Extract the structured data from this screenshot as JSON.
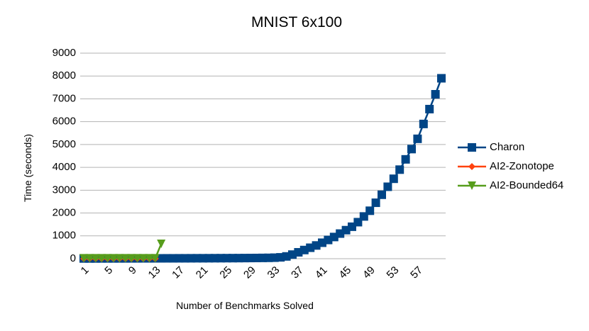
{
  "chart_data": {
    "type": "line",
    "title": "MNIST 6x100",
    "x_label": "Number of Benchmarks Solved",
    "y_label": "Time (seconds)",
    "categories": [
      "1",
      null,
      null,
      null,
      "5",
      null,
      null,
      null,
      "9",
      null,
      null,
      null,
      "13",
      null,
      null,
      null,
      "17",
      null,
      null,
      null,
      "21",
      null,
      null,
      null,
      "25",
      null,
      null,
      null,
      "29",
      null,
      null,
      null,
      "33",
      null,
      null,
      null,
      "37",
      null,
      null,
      null,
      "41",
      null,
      null,
      null,
      "45",
      null,
      null,
      null,
      "49",
      null,
      null,
      null,
      "53",
      null,
      null,
      null,
      "57",
      null,
      null,
      null,
      null
    ],
    "series": [
      {
        "name": "Charon",
        "color": "#004586",
        "marker": "square",
        "values": [
          10,
          10,
          10,
          12,
          12,
          12,
          13,
          13,
          14,
          14,
          15,
          15,
          16,
          16,
          17,
          17,
          18,
          18,
          19,
          20,
          20,
          21,
          22,
          23,
          24,
          25,
          26,
          28,
          30,
          32,
          35,
          38,
          45,
          60,
          100,
          180,
          280,
          380,
          480,
          580,
          700,
          820,
          950,
          1100,
          1250,
          1400,
          1600,
          1850,
          2100,
          2450,
          2800,
          3150,
          3500,
          3900,
          4350,
          4800,
          5250,
          5900,
          6550,
          7200,
          7900
        ]
      },
      {
        "name": "AI2-Zonotope",
        "color": "#ff420e",
        "marker": "diamond",
        "values": [
          5,
          5,
          5,
          5,
          5,
          5,
          5,
          5,
          5,
          5,
          5,
          5,
          5,
          null,
          null,
          null,
          null,
          null,
          null,
          null,
          null,
          null,
          null,
          null,
          null,
          null,
          null,
          null,
          null,
          null,
          null,
          null,
          null,
          null,
          null,
          null,
          null,
          null,
          null,
          null,
          null,
          null,
          null,
          null,
          null,
          null,
          null,
          null,
          null,
          null,
          null,
          null,
          null,
          null,
          null,
          null,
          null,
          null,
          null,
          null,
          null
        ]
      },
      {
        "name": "AI2-Bounded64",
        "color": "#579d1c",
        "marker": "triangle-down",
        "values": [
          20,
          20,
          20,
          20,
          20,
          20,
          20,
          20,
          20,
          20,
          20,
          20,
          20,
          650,
          null,
          null,
          null,
          null,
          null,
          null,
          null,
          null,
          null,
          null,
          null,
          null,
          null,
          null,
          null,
          null,
          null,
          null,
          null,
          null,
          null,
          null,
          null,
          null,
          null,
          null,
          null,
          null,
          null,
          null,
          null,
          null,
          null,
          null,
          null,
          null,
          null,
          null,
          null,
          null,
          null,
          null,
          null,
          null,
          null,
          null,
          null
        ]
      }
    ],
    "ylim": [
      0,
      9000
    ],
    "yticks": [
      0,
      1000,
      2000,
      3000,
      4000,
      5000,
      6000,
      7000,
      8000,
      9000
    ],
    "grid": true
  }
}
